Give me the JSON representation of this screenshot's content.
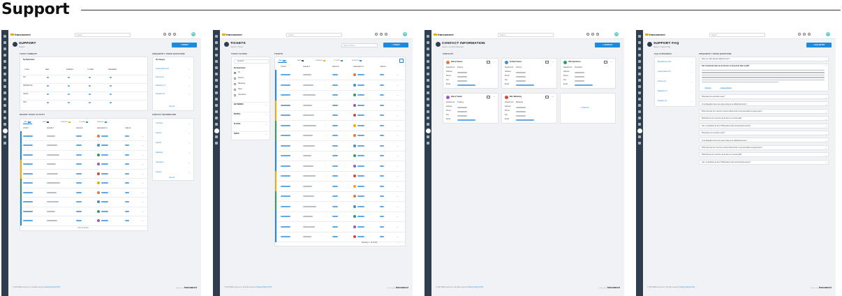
{
  "page": {
    "title": "Support"
  },
  "app": {
    "logo": "francoanect",
    "search_placeholder": "Search",
    "avatar_initials": "FC",
    "footer_copyright": "© 2024 B2B-Connect Inc. All rights reserved.",
    "footer_links": "Privacy Policy & TOS",
    "powered_by": "Powered by",
    "powered_logo": "francoanect"
  },
  "screens": [
    {
      "id": "support",
      "title": "SUPPORT",
      "crumb": "Support",
      "primary_button": "+ TICKET",
      "ticket_summary_label": "TICKET SUMMARY",
      "faq_label": "FREQUENTLY ASKED QUESTIONS",
      "by_department": "By Department",
      "by_category": "By Category",
      "summary_cols": [
        "TOTAL",
        "NEW",
        "PENDING",
        "CLOSED",
        "DEFERRED"
      ],
      "summary_rows": [
        "ISS",
        "MARKETING",
        "SALES",
        "OPS"
      ],
      "faq_categories": [
        "Getting Started (3)",
        "Finance (4)",
        "Marketing (7)",
        "Suppliers (4)"
      ],
      "view_all": "View All",
      "contact_label": "CONTACT INFORMATION",
      "contact_items": [
        "Corporate",
        "Finance",
        "Support",
        "Marketing",
        "Operations",
        "Finance"
      ],
      "recent_label": "RECENT TICKET ACTIVITY",
      "tabs": [
        {
          "label": "ALL",
          "count": "10"
        },
        {
          "label": "NEW",
          "count": "3"
        },
        {
          "label": "PENDING",
          "count": "3"
        },
        {
          "label": "CLOSED",
          "count": "2"
        },
        {
          "label": "PENDING",
          "count": "2"
        }
      ],
      "table_cols": [
        "TICKET",
        "SUBJECT",
        "MODULE",
        "ASSIGNED TO",
        "STATUS"
      ],
      "view_tickets": "View All Tickets"
    },
    {
      "id": "tickets",
      "title": "TICKETS",
      "crumb": "Support / Tickets",
      "primary_button": "+ TICKET",
      "search_placeholder": "Search Tickets",
      "filters_label": "TICKET FILTERS",
      "tickets_label": "TICKETS",
      "keyword": "Keyword",
      "by_department": "By Department",
      "departments": [
        "All",
        "Finance",
        "Marketing",
        "Sales",
        "Operations"
      ],
      "filter_groups": [
        "KEYWORDS",
        "PEOPLE",
        "PLACES",
        "DATES"
      ],
      "tabs": [
        {
          "label": "ALL",
          "count": "10"
        },
        {
          "label": "NEW",
          "count": "3"
        },
        {
          "label": "PENDING",
          "count": "3"
        },
        {
          "label": "CLOSED",
          "count": "2"
        },
        {
          "label": "PENDING",
          "count": "2"
        }
      ],
      "table_cols": [
        "TICKET",
        "SUBJECT",
        "MODULE",
        "ASSIGNED TO",
        "STATUS"
      ],
      "pagination": "Showing 1 - 20 of 212"
    },
    {
      "id": "contacts",
      "title": "CONTACT INFORMATION",
      "crumb": "Support / Contact Information",
      "primary_button": "+ CONTACT",
      "contacts_label": "CONTACTS",
      "contacts": [
        {
          "name": "Danny Finance",
          "dept": "Finance"
        },
        {
          "name": "Freddy Finance",
          "dept": "Finance"
        },
        {
          "name": "Ollie Operations",
          "dept": "Operations"
        },
        {
          "name": "Danny Trucker",
          "dept": "Trucking"
        },
        {
          "name": "Marc Marketing",
          "dept": "Marketing"
        }
      ],
      "field_labels": [
        "Department:",
        "Address:",
        "Phone:",
        "Fax:",
        "Email:"
      ],
      "add_contact": "+ CONTACT"
    },
    {
      "id": "faq",
      "title": "SUPPORT FAQ",
      "crumb": "Support / Support FAQ",
      "primary_button": "+ FAQ ENTRY",
      "categories_label": "FAQ CATEGORIES",
      "questions_label": "FREQUENTLY ASKED QUESTIONS",
      "categories": [
        "Miscellaneous (10)",
        "Getting Started (3)",
        "Finance (4)",
        "Marketing (7)",
        "Suppliers (4)"
      ],
      "questions": [
        "Does my order date get adjusted once?",
        "Can I review the loan we am forever on any prices that is paid?",
        "What does non-exclusive mean?",
        "Is the Magellan license the same thing as an additional license?",
        "Which licenses do I need for second products that is only accessible to paying users?",
        "Which license do I need to use an item in a commercial?",
        "Can I re-distribute an item? What about under an Extended License?",
        "What does non-exclusive mean?",
        "Is the Magellan license the same thing as an additional license?",
        "Which licenses do I need for second products that is only accessible to paying users?",
        "Which license do I need to use an item in a commercial?",
        "Can I re-distribute an item? What about under an Extended License?"
      ],
      "answer_tags": [
        "Finance",
        "Getting Started"
      ]
    }
  ]
}
